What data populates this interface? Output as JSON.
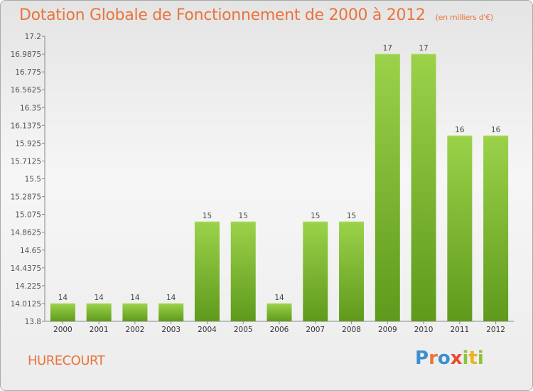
{
  "header": {
    "title": "Dotation Globale de Fonctionnement de 2000 à 2012",
    "unit": "(en milliers d'€)"
  },
  "footer": {
    "commune": "HURECOURT",
    "logo": "Proxiti"
  },
  "colors": {
    "bar_top": "#9bd24a",
    "bar_bottom": "#5f9a1c",
    "title": "#e8743c"
  },
  "chart_data": {
    "type": "bar",
    "title": "Dotation Globale de Fonctionnement de 2000 à 2012",
    "xlabel": "",
    "ylabel": "",
    "categories": [
      "2000",
      "2001",
      "2002",
      "2003",
      "2004",
      "2005",
      "2006",
      "2007",
      "2008",
      "2009",
      "2010",
      "2011",
      "2012"
    ],
    "values": [
      14.0125,
      14.0125,
      14.0125,
      14.0125,
      14.9875,
      14.9875,
      14.0125,
      14.9875,
      14.9875,
      16.9875,
      16.9875,
      16.0125,
      16.0125
    ],
    "data_labels": [
      "14",
      "14",
      "14",
      "14",
      "15",
      "15",
      "14",
      "15",
      "15",
      "17",
      "17",
      "16",
      "16"
    ],
    "ylim": [
      13.8,
      17.2
    ],
    "yticks": [
      "13.8",
      "14.0125",
      "14.225",
      "14.4375",
      "14.65",
      "14.8625",
      "15.075",
      "15.2875",
      "15.5",
      "15.7125",
      "15.925",
      "16.1375",
      "16.35",
      "16.5625",
      "16.775",
      "16.9875",
      "17.2"
    ],
    "grid": false
  }
}
